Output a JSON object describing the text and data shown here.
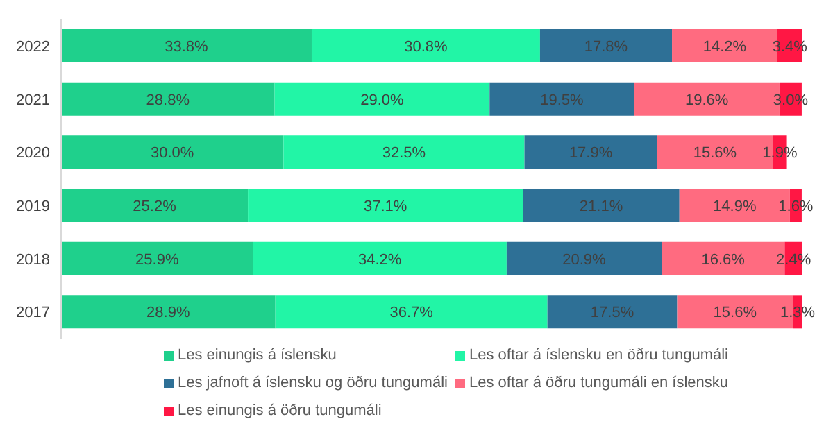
{
  "chart_data": {
    "type": "bar",
    "orientation": "horizontal",
    "stacked": true,
    "categories": [
      "2022",
      "2021",
      "2020",
      "2019",
      "2018",
      "2017"
    ],
    "xlim": [
      0,
      100
    ],
    "tick_labels": "y",
    "grid": false,
    "legend": "bottom",
    "series": [
      {
        "name": "Les einungis á íslensku",
        "color": "#1fd08c",
        "values": [
          33.8,
          28.8,
          30.0,
          25.2,
          25.9,
          28.9
        ],
        "value_labels": [
          "33.8%",
          "28.8%",
          "30.0%",
          "25.2%",
          "25.9%",
          "28.9%"
        ]
      },
      {
        "name": "Les oftar á íslensku en öðru tungumáli",
        "color": "#22f5a6",
        "values": [
          30.8,
          29.0,
          32.5,
          37.1,
          34.2,
          36.7
        ],
        "value_labels": [
          "30.8%",
          "29.0%",
          "32.5%",
          "37.1%",
          "34.2%",
          "36.7%"
        ]
      },
      {
        "name": "Les jafnoft á íslensku og öðru tungumáli",
        "color": "#2e7096",
        "values": [
          17.8,
          19.5,
          17.9,
          21.1,
          20.9,
          17.5
        ],
        "value_labels": [
          "17.8%",
          "19.5%",
          "17.9%",
          "21.1%",
          "20.9%",
          "17.5%"
        ]
      },
      {
        "name": "Les oftar á öðru tungumáli en íslensku",
        "color": "#ff6b80",
        "values": [
          14.2,
          19.6,
          15.6,
          14.9,
          16.6,
          15.6
        ],
        "value_labels": [
          "14.2%",
          "19.6%",
          "15.6%",
          "14.9%",
          "16.6%",
          "15.6%"
        ]
      },
      {
        "name": "Les einungis á öðru tungumáli",
        "color": "#ff1744",
        "values": [
          3.4,
          3.0,
          1.9,
          1.6,
          2.4,
          1.3
        ],
        "value_labels": [
          "3.4%",
          "3.0%",
          "1.9%",
          "1.6%",
          "2.4%",
          "1.3%"
        ]
      }
    ]
  }
}
